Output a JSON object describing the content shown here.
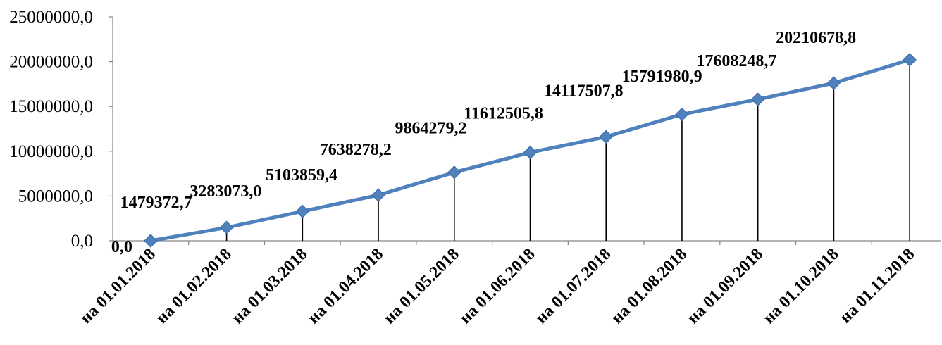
{
  "chart_data": {
    "type": "line",
    "categories": [
      "на 01.01.2018",
      "на 01.02.2018",
      "на 01.03.2018",
      "на 01.04.2018",
      "на 01.05.2018",
      "на 01.06.2018",
      "на 01.07.2018",
      "на 01.08.2018",
      "на 01.09.2018",
      "на 01.10.2018",
      "на 01.11.2018"
    ],
    "values": [
      0.0,
      1479372.7,
      3283073.0,
      5103859.4,
      7638278.2,
      9864279.2,
      11612505.8,
      14117507.8,
      15791980.9,
      17608248.7,
      20210678.8
    ],
    "data_labels": [
      "0,0",
      "1479372,7",
      "3283073,0",
      "5103859,4",
      "7638278,2",
      "9864279,2",
      "11612505,8",
      "14117507,8",
      "15791980,9",
      "17608248,7",
      "20210678,8"
    ],
    "y_ticks": [
      "0,0",
      "5000000,0",
      "10000000,0",
      "15000000,0",
      "20000000,0",
      "25000000,0"
    ],
    "ylim": [
      0,
      25000000
    ],
    "grid": false,
    "drop_lines": true,
    "marker": "diamond",
    "line_color": "#4F81BD"
  }
}
